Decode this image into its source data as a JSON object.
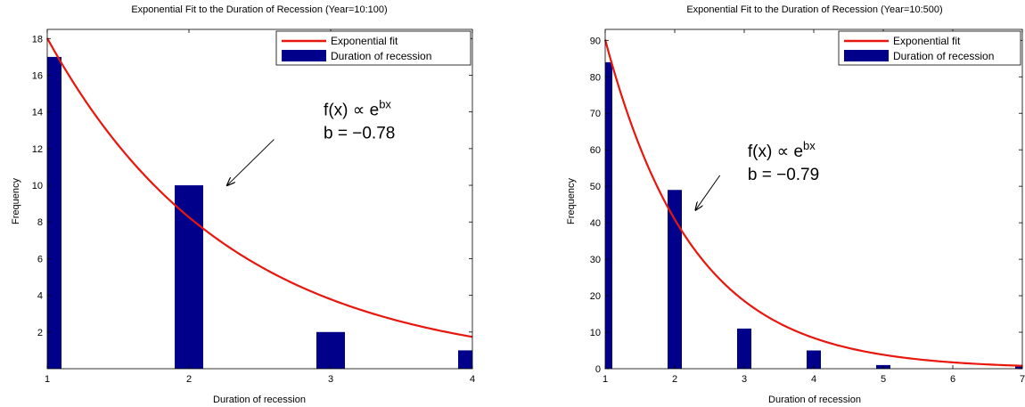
{
  "chart_data": [
    {
      "type": "bar",
      "title": "Exponential Fit to the Duration of Recession (Year=10:100)",
      "xlabel": "Duration of recession",
      "ylabel": "Frequency",
      "xlim": [
        1,
        4
      ],
      "ylim": [
        0,
        18.5
      ],
      "xticks": [
        1,
        2,
        3,
        4
      ],
      "yticks": [
        2,
        4,
        6,
        8,
        10,
        12,
        14,
        16,
        18
      ],
      "grid": false,
      "legend_position": "top-right",
      "colors": {
        "bar": "#00008b",
        "fit": "#e8160c"
      },
      "bars": {
        "name": "Duration of recession",
        "x": [
          1,
          2,
          3,
          4
        ],
        "values": [
          17,
          10,
          2,
          1
        ]
      },
      "fit": {
        "name": "Exponential fit",
        "amplitude": 39.31,
        "b": -0.78
      },
      "annotation": {
        "line1_base": "f(x) ∝ e",
        "line1_sup": "bx",
        "line2": "b = −0.78",
        "arrow_tail": [
          2.6,
          12.5
        ],
        "arrow_head": [
          2.27,
          10.0
        ],
        "text_anchor": [
          2.95,
          14.1
        ]
      }
    },
    {
      "type": "bar",
      "title": "Exponential Fit to the Duration of Recession (Year=10:500)",
      "xlabel": "Duration of recession",
      "ylabel": "Frequency",
      "xlim": [
        1,
        7
      ],
      "ylim": [
        0,
        93
      ],
      "xticks": [
        1,
        2,
        3,
        4,
        5,
        6,
        7
      ],
      "yticks": [
        0,
        10,
        20,
        30,
        40,
        50,
        60,
        70,
        80,
        90
      ],
      "grid": false,
      "legend_position": "top-right",
      "colors": {
        "bar": "#00008b",
        "fit": "#e8160c"
      },
      "bars": {
        "name": "Duration of recession",
        "x": [
          1,
          2,
          3,
          4,
          5,
          7
        ],
        "values": [
          84,
          49,
          11,
          5,
          1,
          1
        ]
      },
      "fit": {
        "name": "Exponential fit",
        "amplitude": 198.7,
        "b": -0.79
      },
      "annotation": {
        "line1_base": "f(x) ∝ e",
        "line1_sup": "bx",
        "line2": "b = −0.79",
        "arrow_tail": [
          2.65,
          53
        ],
        "arrow_head": [
          2.3,
          43.5
        ],
        "text_anchor": [
          3.05,
          59.5
        ]
      }
    }
  ]
}
